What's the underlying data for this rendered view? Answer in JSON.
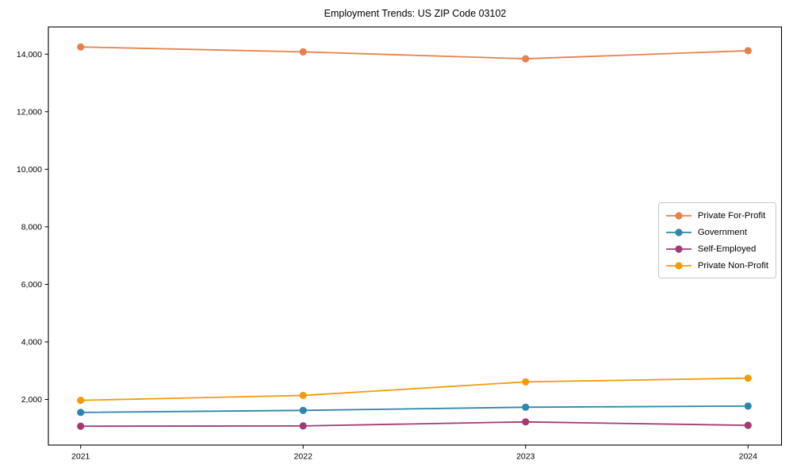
{
  "chart_data": {
    "type": "line",
    "title": "Employment Trends: US ZIP Code 03102",
    "x": [
      "2021",
      "2022",
      "2023",
      "2024"
    ],
    "series": [
      {
        "name": "Private For-Profit",
        "color": "#e8804c",
        "values": [
          14250,
          14080,
          13840,
          14120
        ]
      },
      {
        "name": "Government",
        "color": "#2e86ab",
        "values": [
          1550,
          1620,
          1730,
          1770
        ]
      },
      {
        "name": "Self-Employed",
        "color": "#a23b72",
        "values": [
          1070,
          1080,
          1220,
          1100
        ]
      },
      {
        "name": "Private Non-Profit",
        "color": "#f29c0c",
        "values": [
          1970,
          2140,
          2610,
          2740
        ]
      }
    ],
    "yticks": [
      2000,
      4000,
      6000,
      8000,
      10000,
      12000,
      14000
    ],
    "ylim": [
      415,
      14945
    ],
    "xlabel": "",
    "ylabel": "",
    "grid": false,
    "legend_position": "right",
    "axis_color": "#000000"
  }
}
